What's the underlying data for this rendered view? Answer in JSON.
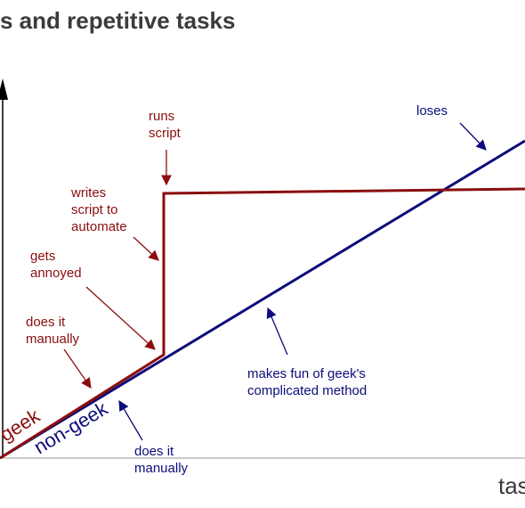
{
  "title": "s and repetitive tasks",
  "x_axis_label": "tas",
  "series": {
    "geek": "geek",
    "non_geek": "non-geek"
  },
  "annotations": {
    "runs_script": "runs\nscript",
    "writes_script": "writes\nscript to\nautomate",
    "gets_annoyed": "gets\nannoyed",
    "geek_does_manually": "does it\nmanually",
    "loses": "loses",
    "makes_fun": "makes fun of geek's\ncomplicated method",
    "nongeek_does_manually": "does it\nmanually"
  },
  "colors": {
    "geek": "#8b0e0e",
    "non_geek": "#0c0c7a",
    "axis": "#000000",
    "title": "#3b3b3b"
  }
}
